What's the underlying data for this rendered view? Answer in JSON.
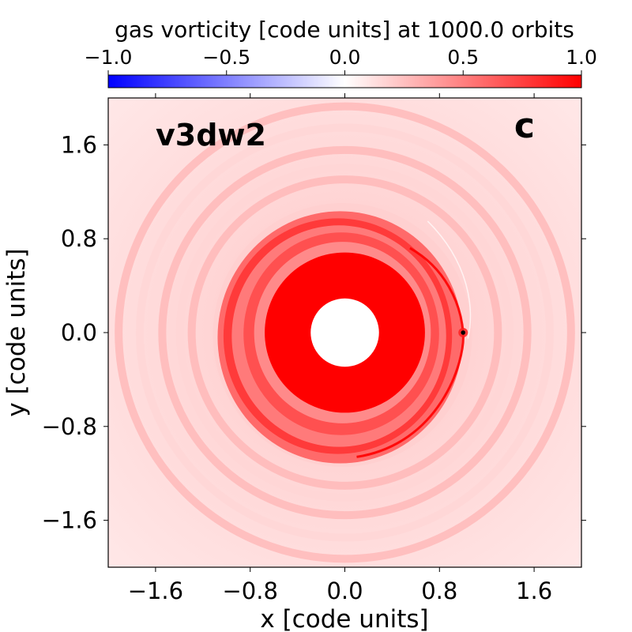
{
  "chart_data": {
    "type": "heatmap",
    "title": "gas vorticity [code units] at 1000.0 orbits",
    "xlabel": "x [code units]",
    "ylabel": "y [code units]",
    "xlim": [
      -2.0,
      2.0
    ],
    "ylim": [
      -2.0,
      2.0
    ],
    "xticks": [
      -1.6,
      -0.8,
      0.0,
      0.8,
      1.6
    ],
    "yticks": [
      -1.6,
      -0.8,
      0.0,
      0.8,
      1.6
    ],
    "xtick_labels": [
      "−1.6",
      "−0.8",
      "0.0",
      "0.8",
      "1.6"
    ],
    "ytick_labels": [
      "−1.6",
      "−0.8",
      "0.0",
      "0.8",
      "1.6"
    ],
    "colorbar": {
      "vmin": -1.0,
      "vmax": 1.0,
      "ticks": [
        -1.0,
        -0.5,
        0.0,
        0.5,
        1.0
      ],
      "tick_labels": [
        "−1.0",
        "−0.5",
        "0.0",
        "0.5",
        "1.0"
      ],
      "colormap": "bwr",
      "placement": "top"
    },
    "annotations": {
      "model": "v3dw2",
      "panel": "c"
    },
    "inner_hole_radius": 0.29,
    "planet": {
      "x": 1.0,
      "y": 0.0
    },
    "colors": {
      "low": "#0000ff",
      "mid": "#ffffff",
      "high": "#ff0000",
      "background_field": "#ffdcdc",
      "disk_core": "#ff0000",
      "planet": "#000000"
    }
  }
}
